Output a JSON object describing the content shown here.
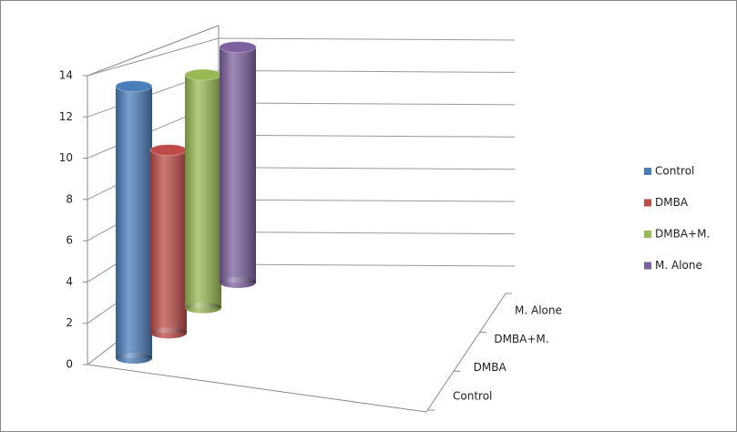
{
  "chart_data": {
    "type": "bar3d",
    "categories": [
      null
    ],
    "series": [
      {
        "name": "Control",
        "color": "#4a7ebb",
        "values": [
          13.2
        ]
      },
      {
        "name": "DMBA",
        "color": "#be4b48",
        "values": [
          9.5
        ]
      },
      {
        "name": "DMBA+M.",
        "color": "#98b954",
        "values": [
          13
        ]
      },
      {
        "name": "M. Alone",
        "color": "#7d60a0",
        "values": [
          14.2
        ]
      }
    ],
    "ylim": [
      0,
      14
    ],
    "yticks": [
      0,
      2,
      4,
      6,
      8,
      10,
      12,
      14
    ],
    "grid": true,
    "legend": "right"
  }
}
